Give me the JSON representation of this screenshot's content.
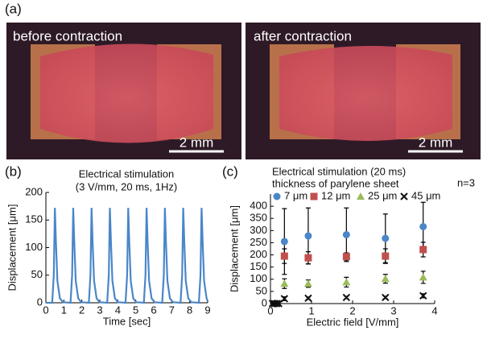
{
  "panels": {
    "a_label": "(a)",
    "b_label": "(b)",
    "c_label": "(c)",
    "photos": [
      {
        "caption": "before contraction",
        "scale": "2 mm"
      },
      {
        "caption": "after contraction",
        "scale": "2 mm"
      }
    ]
  },
  "chart_data": [
    {
      "type": "line",
      "annotations": [
        "Electrical stimulation",
        "(3 V/mm, 20 ms, 1Hz)"
      ],
      "xlabel": "Time [sec]",
      "ylabel": "Displacement [μm]",
      "color": "#4a86c8",
      "xlim": [
        0,
        9
      ],
      "xticks": [
        0,
        1,
        2,
        3,
        4,
        5,
        6,
        7,
        8,
        9
      ],
      "ylim": [
        0,
        200
      ],
      "yticks": [
        0,
        50,
        100,
        150,
        200
      ],
      "x": [
        0,
        0.35,
        0.44,
        0.5,
        0.56,
        0.64,
        0.78,
        0.95,
        1.37,
        1.46,
        1.52,
        1.58,
        1.66,
        1.8,
        1.97,
        2.39,
        2.48,
        2.54,
        2.6,
        2.68,
        2.82,
        2.99,
        3.41,
        3.5,
        3.56,
        3.62,
        3.7,
        3.84,
        4.01,
        4.43,
        4.52,
        4.58,
        4.64,
        4.72,
        4.86,
        5.03,
        5.45,
        5.54,
        5.6,
        5.66,
        5.74,
        5.88,
        6.05,
        6.47,
        6.56,
        6.62,
        6.68,
        6.76,
        6.9,
        7.07,
        7.49,
        7.58,
        7.64,
        7.7,
        7.78,
        7.92,
        8.09,
        8.51,
        8.6,
        8.66,
        8.72,
        8.8,
        8.94,
        9.0
      ],
      "values": [
        0,
        0,
        50,
        172,
        110,
        40,
        8,
        1,
        0,
        50,
        172,
        110,
        40,
        8,
        1,
        0,
        50,
        172,
        110,
        40,
        8,
        1,
        0,
        50,
        172,
        110,
        40,
        8,
        1,
        0,
        50,
        172,
        110,
        40,
        8,
        1,
        0,
        50,
        172,
        110,
        40,
        8,
        1,
        0,
        50,
        172,
        110,
        40,
        8,
        1,
        0,
        50,
        172,
        110,
        40,
        8,
        1,
        0,
        50,
        172,
        110,
        40,
        8,
        3
      ]
    },
    {
      "type": "scatter",
      "annotations": [
        "Electrical stimulation (20 ms)",
        "thickness of parylene sheet",
        "n=3"
      ],
      "xlabel": "Electric field [V/mm]",
      "ylabel": "Displacement [μm]",
      "xlim": [
        0,
        4
      ],
      "xticks": [
        0,
        1,
        2,
        3,
        4
      ],
      "ylim": [
        0,
        450
      ],
      "yticks": [
        0,
        50,
        100,
        150,
        200,
        250,
        300,
        350,
        400
      ],
      "series": [
        {
          "name": "7 μm",
          "color": "#4a86c8",
          "marker": "circle",
          "x": [
            0.34,
            0.92,
            1.85,
            2.8,
            3.72
          ],
          "values": [
            255,
            278,
            283,
            268,
            316
          ],
          "errors": [
            135,
            115,
            110,
            100,
            100
          ]
        },
        {
          "name": "12 μm",
          "color": "#c0504d",
          "marker": "square",
          "x": [
            0.34,
            0.92,
            1.85,
            2.8,
            3.72
          ],
          "values": [
            195,
            188,
            193,
            195,
            222
          ],
          "errors": [
            30,
            25,
            15,
            30,
            30
          ]
        },
        {
          "name": "25 μm",
          "color": "#9bbb59",
          "marker": "triangle",
          "x": [
            0.34,
            0.92,
            1.85,
            2.8,
            3.72
          ],
          "values": [
            82,
            82,
            88,
            102,
            108
          ],
          "errors": [
            20,
            15,
            20,
            18,
            25
          ]
        },
        {
          "name": "45 μm",
          "color": "#111111",
          "marker": "x",
          "x": [
            0.05,
            0.1,
            0.15,
            0.2,
            0.34,
            0.92,
            1.85,
            2.8,
            3.72
          ],
          "values": [
            0,
            0,
            0,
            0,
            20,
            22,
            25,
            25,
            32
          ],
          "errors": [
            0,
            0,
            0,
            0,
            8,
            5,
            5,
            5,
            8
          ]
        }
      ]
    }
  ]
}
